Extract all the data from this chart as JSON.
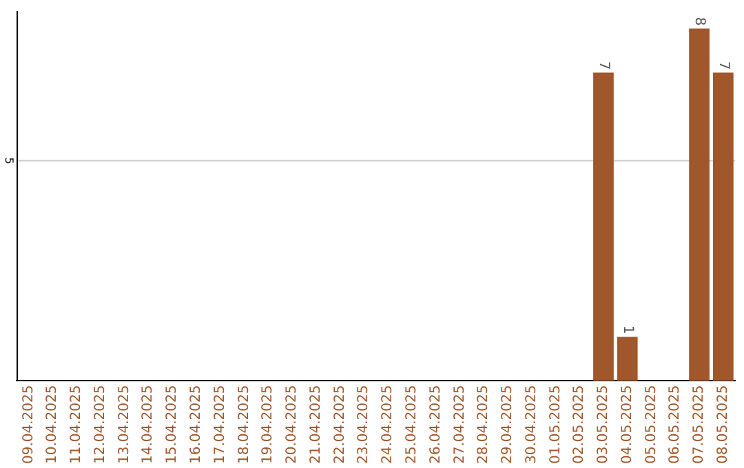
{
  "chart_data": {
    "type": "bar",
    "categories": [
      "09.04.2025",
      "10.04.2025",
      "11.04.2025",
      "12.04.2025",
      "13.04.2025",
      "14.04.2025",
      "15.04.2025",
      "16.04.2025",
      "17.04.2025",
      "18.04.2025",
      "19.04.2025",
      "20.04.2025",
      "21.04.2025",
      "22.04.2025",
      "23.04.2025",
      "24.04.2025",
      "25.04.2025",
      "26.04.2025",
      "27.04.2025",
      "28.04.2025",
      "29.04.2025",
      "30.04.2025",
      "01.05.2025",
      "02.05.2025",
      "03.05.2025",
      "04.05.2025",
      "05.05.2025",
      "06.05.2025",
      "07.05.2025",
      "08.05.2025"
    ],
    "values": [
      null,
      null,
      null,
      null,
      null,
      null,
      null,
      null,
      null,
      null,
      null,
      null,
      null,
      null,
      null,
      null,
      null,
      null,
      null,
      null,
      null,
      null,
      null,
      null,
      7,
      1,
      null,
      null,
      8,
      7
    ],
    "value_labels": [
      null,
      null,
      null,
      null,
      null,
      null,
      null,
      null,
      null,
      null,
      null,
      null,
      null,
      null,
      null,
      null,
      null,
      null,
      null,
      null,
      null,
      null,
      null,
      null,
      "7",
      "1",
      null,
      null,
      "8",
      "7"
    ],
    "ylim": [
      0,
      8.4
    ],
    "color": "#a0572b",
    "ref_lines": [
      {
        "axis": "y",
        "value": 5,
        "label": "5",
        "color": "#cccccc"
      }
    ]
  }
}
